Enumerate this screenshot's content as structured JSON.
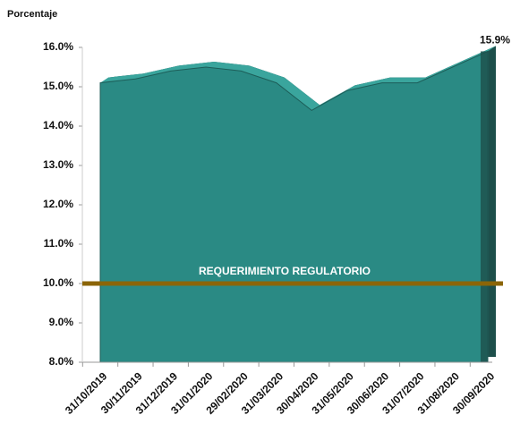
{
  "chart_data": {
    "type": "area",
    "y_axis_label": "Porcentaje",
    "categories": [
      "31/10/2019",
      "30/11/2019",
      "31/12/2019",
      "31/01/2020",
      "29/02/2020",
      "31/03/2020",
      "30/04/2020",
      "31/05/2020",
      "30/06/2020",
      "31/07/2020",
      "31/08/2020",
      "30/09/2020"
    ],
    "values": [
      15.1,
      15.2,
      15.4,
      15.5,
      15.4,
      15.1,
      14.4,
      14.9,
      15.1,
      15.1,
      15.5,
      15.9
    ],
    "value_labels": [
      null,
      null,
      null,
      null,
      null,
      null,
      null,
      null,
      null,
      null,
      null,
      "15.9%"
    ],
    "color": "#2a8a84",
    "ylim": [
      8,
      16
    ],
    "yticks": [
      {
        "value": 8,
        "label": "8.0%"
      },
      {
        "value": 9,
        "label": "9.0%"
      },
      {
        "value": 10,
        "label": "10.0%"
      },
      {
        "value": 11,
        "label": "11.0%"
      },
      {
        "value": 12,
        "label": "12.0%"
      },
      {
        "value": 13,
        "label": "13.0%"
      },
      {
        "value": 14,
        "label": "14.0%"
      },
      {
        "value": 15,
        "label": "15.0%"
      },
      {
        "value": 16,
        "label": "16.0%"
      }
    ],
    "grid": false,
    "reference_line": {
      "value": 10,
      "label": "REQUERIMIENTO REGULATORIO",
      "color": "#8b6508"
    }
  }
}
